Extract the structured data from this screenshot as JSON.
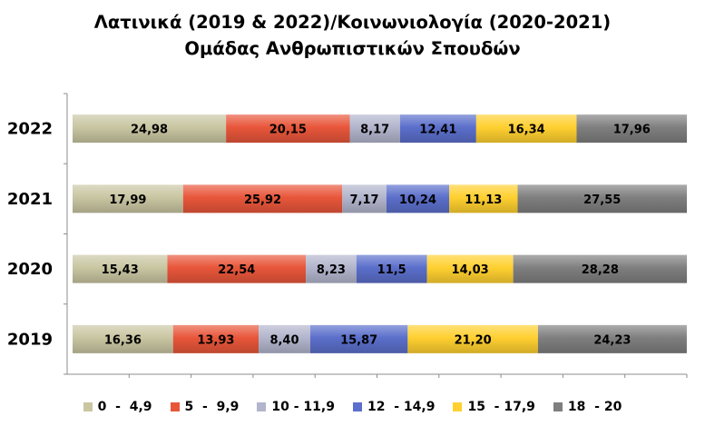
{
  "chart_data": {
    "type": "bar",
    "orientation": "horizontal",
    "stacked": true,
    "title": "Λατινικά (2019 & 2022)/Κοινωνιολογία (2020-2021)",
    "subtitle": "Ομάδας Ανθρωπιστικών Σπουδών",
    "categories": [
      "2022",
      "2021",
      "2020",
      "2019"
    ],
    "xlim": [
      0,
      100
    ],
    "grid": false,
    "legend_position": "bottom",
    "series": [
      {
        "name": "0  -  4,9",
        "color": "#c9c6a2",
        "values": [
          24.98,
          17.99,
          15.43,
          16.36
        ],
        "labels": [
          "24,98",
          "17,99",
          "15,43",
          "16,36"
        ]
      },
      {
        "name": "5  -  9,9",
        "color": "#e8563a",
        "values": [
          20.15,
          25.92,
          22.54,
          13.93
        ],
        "labels": [
          "20,15",
          "25,92",
          "22,54",
          "13,93"
        ]
      },
      {
        "name": "10 - 11,9",
        "color": "#b2b5cc",
        "values": [
          8.17,
          7.17,
          8.23,
          8.4
        ],
        "labels": [
          "8,17",
          "7,17",
          "8,23",
          "8,40"
        ]
      },
      {
        "name": "12  - 14,9",
        "color": "#5b6fcb",
        "values": [
          12.41,
          10.24,
          11.5,
          15.87
        ],
        "labels": [
          "12,41",
          "10,24",
          "11,5",
          "15,87"
        ]
      },
      {
        "name": "15  - 17,9",
        "color": "#ffd030",
        "values": [
          16.34,
          11.13,
          14.03,
          21.2
        ],
        "labels": [
          "16,34",
          "11,13",
          "14,03",
          "21,20"
        ]
      },
      {
        "name": "18  - 20",
        "color": "#7f7f7f",
        "values": [
          17.96,
          27.55,
          28.28,
          24.23
        ],
        "labels": [
          "17,96",
          "27,55",
          "28,28",
          "24,23"
        ]
      }
    ]
  }
}
